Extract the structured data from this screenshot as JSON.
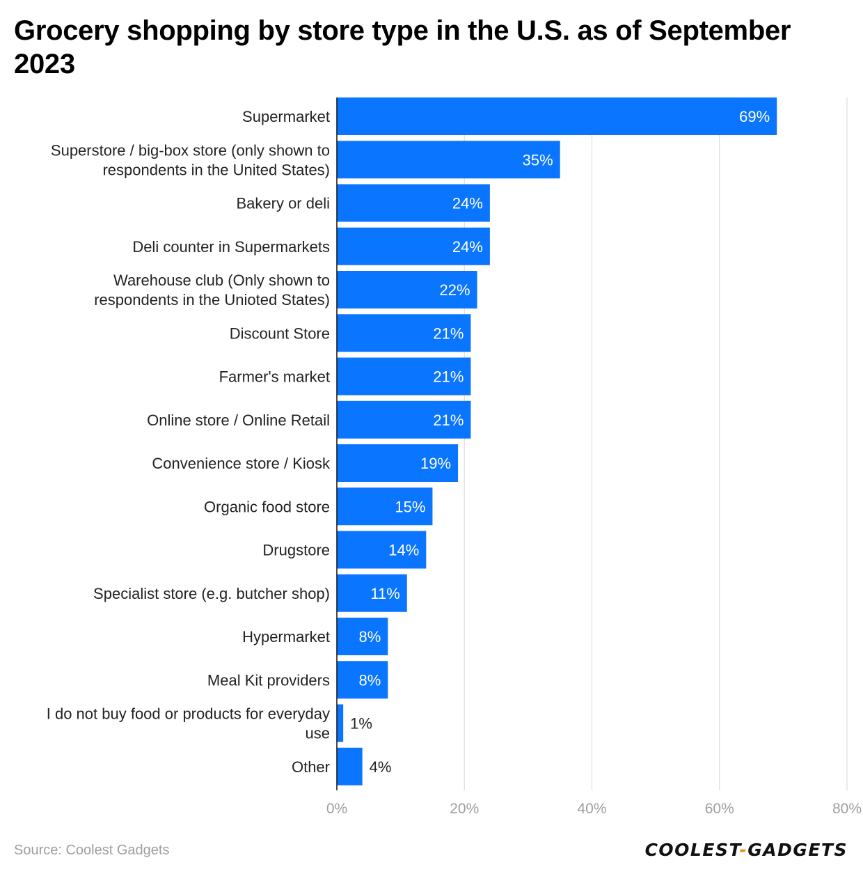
{
  "title": "Grocery shopping by store type in the U.S. as of September 2023",
  "source_text": "Source: Coolest Gadgets",
  "logo": {
    "word1": "COOLEST",
    "dash": "-",
    "word2": "GADGETS",
    "dash_color": "#e8890c"
  },
  "colors": {
    "bar": "#0a75ff",
    "grid": "#dddddd",
    "tick": "#9e9e9e",
    "label": "#222222"
  },
  "chart_data": {
    "type": "bar",
    "orientation": "horizontal",
    "categories": [
      "Supermarket",
      "Superstore / big-box store (only shown to respondents in the United States)",
      "Bakery or deli",
      "Deli counter in Supermarkets",
      "Warehouse club (Only shown to respondents in the Unioted States)",
      "Discount Store",
      "Farmer's market",
      "Online store / Online Retail",
      "Convenience store / Kiosk",
      "Organic food store",
      "Drugstore",
      "Specialist store (e.g. butcher shop)",
      "Hypermarket",
      "Meal Kit providers",
      "I do not buy food or products for everyday use",
      "Other"
    ],
    "category_lines": [
      [
        "Supermarket"
      ],
      [
        "Superstore / big-box store (only shown to",
        "respondents in the United States)"
      ],
      [
        "Bakery or deli"
      ],
      [
        "Deli counter in Supermarkets"
      ],
      [
        "Warehouse club (Only shown to",
        "respondents in the Unioted States)"
      ],
      [
        "Discount Store"
      ],
      [
        "Farmer's market"
      ],
      [
        "Online store / Online Retail"
      ],
      [
        "Convenience store / Kiosk"
      ],
      [
        "Organic food store"
      ],
      [
        "Drugstore"
      ],
      [
        "Specialist store (e.g. butcher shop)"
      ],
      [
        "Hypermarket"
      ],
      [
        "Meal Kit providers"
      ],
      [
        "I do not buy food or products for everyday",
        "use"
      ],
      [
        "Other"
      ]
    ],
    "values": [
      69,
      35,
      24,
      24,
      22,
      21,
      21,
      21,
      19,
      15,
      14,
      11,
      8,
      8,
      1,
      4
    ],
    "value_labels": [
      "69%",
      "35%",
      "24%",
      "24%",
      "22%",
      "21%",
      "21%",
      "21%",
      "19%",
      "15%",
      "14%",
      "11%",
      "8%",
      "8%",
      "1%",
      "4%"
    ],
    "x_ticks": [
      0,
      20,
      40,
      60,
      80
    ],
    "x_tick_labels": [
      "0%",
      "20%",
      "40%",
      "60%",
      "80%"
    ],
    "xlim": [
      0,
      80
    ],
    "xlabel": "",
    "ylabel": "",
    "grid": true,
    "legend": "none"
  }
}
